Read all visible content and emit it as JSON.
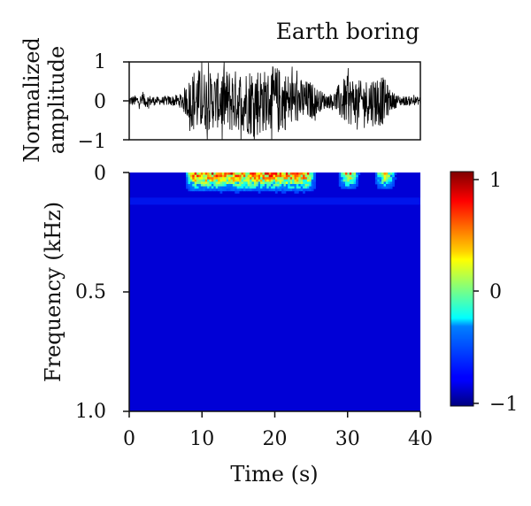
{
  "chart_data": [
    {
      "type": "line",
      "title": "Earth boring",
      "ylabel": [
        "Normalized",
        "amplitude"
      ],
      "xlim": [
        0,
        40
      ],
      "ylim": [
        -1,
        1
      ],
      "yticks": [
        "1",
        "0",
        "−1"
      ],
      "series": [
        {
          "x": [
            0,
            2,
            4,
            6,
            7,
            8,
            9,
            10,
            11,
            12,
            13,
            14,
            15,
            16,
            17,
            18,
            19,
            20,
            21,
            22,
            23,
            24,
            25,
            26,
            27,
            28,
            29,
            30,
            31,
            32,
            33,
            34,
            35,
            36,
            37,
            38,
            39,
            40
          ],
          "envelope": [
            0.12,
            0.18,
            0.1,
            0.14,
            0.18,
            0.45,
            0.9,
            0.8,
            0.75,
            0.7,
            0.8,
            0.85,
            0.78,
            0.82,
            0.95,
            0.9,
            0.75,
            0.95,
            0.8,
            0.72,
            0.6,
            0.55,
            0.5,
            0.3,
            0.2,
            0.18,
            0.5,
            0.65,
            0.6,
            0.5,
            0.62,
            0.7,
            0.6,
            0.25,
            0.15,
            0.12,
            0.12,
            0.1
          ]
        }
      ]
    },
    {
      "type": "heatmap",
      "xlabel": "Time (s)",
      "ylabel": "Frequency (kHz)",
      "xlim": [
        0,
        40
      ],
      "ylim": [
        1.0,
        0
      ],
      "xticks": [
        "0",
        "10",
        "20",
        "30",
        "40"
      ],
      "yticks": [
        "0",
        "0.5",
        "1.0"
      ],
      "colorbar": {
        "range": [
          -1,
          1
        ],
        "ticks": [
          "1",
          "0",
          "−1"
        ],
        "colormap": "jet"
      },
      "background_value": -0.85,
      "band": {
        "frequency": 0.12,
        "value": -0.65
      },
      "hot_regions": [
        {
          "t_start": 7.5,
          "t_end": 25.5,
          "f_max": 0.08,
          "peak": 1.0
        },
        {
          "t_start": 28.5,
          "t_end": 31.5,
          "f_max": 0.07,
          "peak": 0.7
        },
        {
          "t_start": 33.5,
          "t_end": 36.5,
          "f_max": 0.07,
          "peak": 0.65
        }
      ]
    }
  ]
}
